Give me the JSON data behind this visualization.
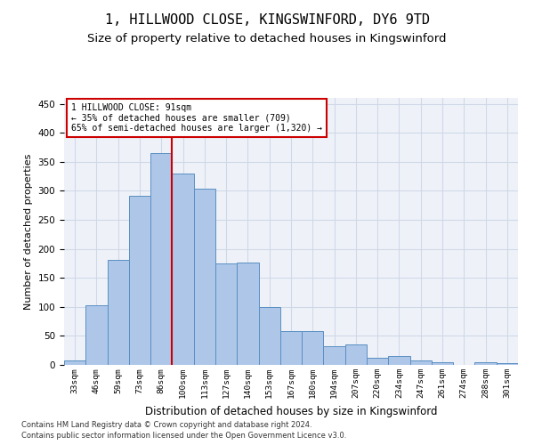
{
  "title": "1, HILLWOOD CLOSE, KINGSWINFORD, DY6 9TD",
  "subtitle": "Size of property relative to detached houses in Kingswinford",
  "xlabel": "Distribution of detached houses by size in Kingswinford",
  "ylabel": "Number of detached properties",
  "categories": [
    "33sqm",
    "46sqm",
    "59sqm",
    "73sqm",
    "86sqm",
    "100sqm",
    "113sqm",
    "127sqm",
    "140sqm",
    "153sqm",
    "167sqm",
    "180sqm",
    "194sqm",
    "207sqm",
    "220sqm",
    "234sqm",
    "247sqm",
    "261sqm",
    "274sqm",
    "288sqm",
    "301sqm"
  ],
  "values": [
    7,
    102,
    181,
    291,
    365,
    330,
    303,
    175,
    176,
    100,
    58,
    58,
    32,
    35,
    12,
    15,
    8,
    5,
    0,
    5,
    3
  ],
  "bar_color": "#aec6e8",
  "bar_edge_color": "#5a8fc2",
  "grid_color": "#d0d8e8",
  "background_color": "#eef2f8",
  "property_line_x": 4.5,
  "annotation_line1": "1 HILLWOOD CLOSE: 91sqm",
  "annotation_line2": "← 35% of detached houses are smaller (709)",
  "annotation_line3": "65% of semi-detached houses are larger (1,320) →",
  "annotation_box_color": "#ffffff",
  "annotation_box_edge": "#cc0000",
  "property_line_color": "#cc0000",
  "footnote1": "Contains HM Land Registry data © Crown copyright and database right 2024.",
  "footnote2": "Contains public sector information licensed under the Open Government Licence v3.0.",
  "ylim": [
    0,
    460
  ],
  "title_fontsize": 11,
  "subtitle_fontsize": 9.5
}
